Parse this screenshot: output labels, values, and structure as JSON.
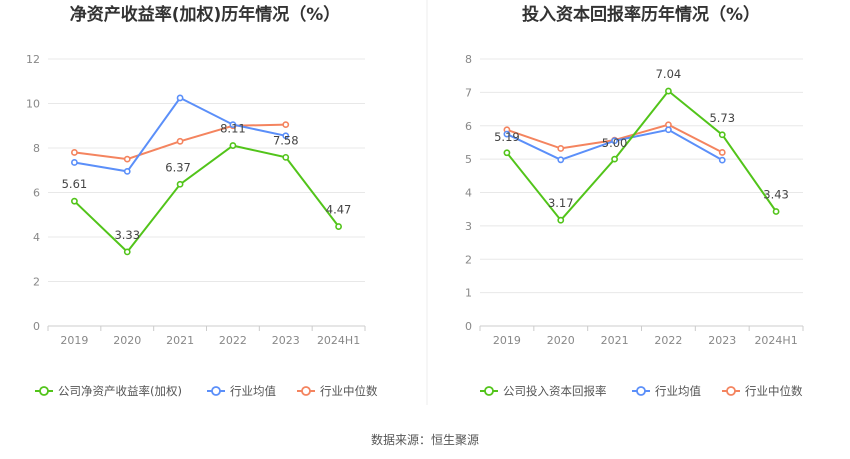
{
  "chart_data": [
    {
      "type": "line",
      "title": "净资产收益率(加权)历年情况（%）",
      "categories": [
        "2019",
        "2020",
        "2021",
        "2022",
        "2023",
        "2024H1"
      ],
      "ylim": [
        0,
        12
      ],
      "yticks": [
        0,
        2,
        4,
        6,
        8,
        10,
        12
      ],
      "grid": true,
      "legend_position": "bottom",
      "series": [
        {
          "name": "公司净资产收益率(加权)",
          "color": "#52c41a",
          "values": [
            5.61,
            3.33,
            6.37,
            8.11,
            7.58,
            4.47
          ],
          "labels": [
            "5.61",
            "3.33",
            "6.37",
            "8.11",
            "7.58",
            "4.47"
          ]
        },
        {
          "name": "行业均值",
          "color": "#5b8ff9",
          "values": [
            7.35,
            6.95,
            10.25,
            9.05,
            8.55,
            null
          ],
          "labels": []
        },
        {
          "name": "行业中位数",
          "color": "#f4845f",
          "values": [
            7.8,
            7.5,
            8.3,
            9.0,
            9.05,
            null
          ],
          "labels": []
        }
      ]
    },
    {
      "type": "line",
      "title": "投入资本回报率历年情况（%）",
      "categories": [
        "2019",
        "2020",
        "2021",
        "2022",
        "2023",
        "2024H1"
      ],
      "ylim": [
        0,
        8
      ],
      "yticks": [
        0,
        1,
        2,
        3,
        4,
        5,
        6,
        7,
        8
      ],
      "grid": true,
      "legend_position": "bottom",
      "series": [
        {
          "name": "公司投入资本回报率",
          "color": "#52c41a",
          "values": [
            5.19,
            3.17,
            5.0,
            7.04,
            5.73,
            3.43
          ],
          "labels": [
            "5.19",
            "3.17",
            "5.00",
            "7.04",
            "5.73",
            "3.43"
          ]
        },
        {
          "name": "行业均值",
          "color": "#5b8ff9",
          "values": [
            5.75,
            4.98,
            5.55,
            5.88,
            4.97,
            null
          ],
          "labels": []
        },
        {
          "name": "行业中位数",
          "color": "#f4845f",
          "values": [
            5.88,
            5.32,
            5.57,
            6.03,
            5.2,
            null
          ],
          "labels": []
        }
      ]
    }
  ],
  "source": "数据来源：恒生聚源"
}
